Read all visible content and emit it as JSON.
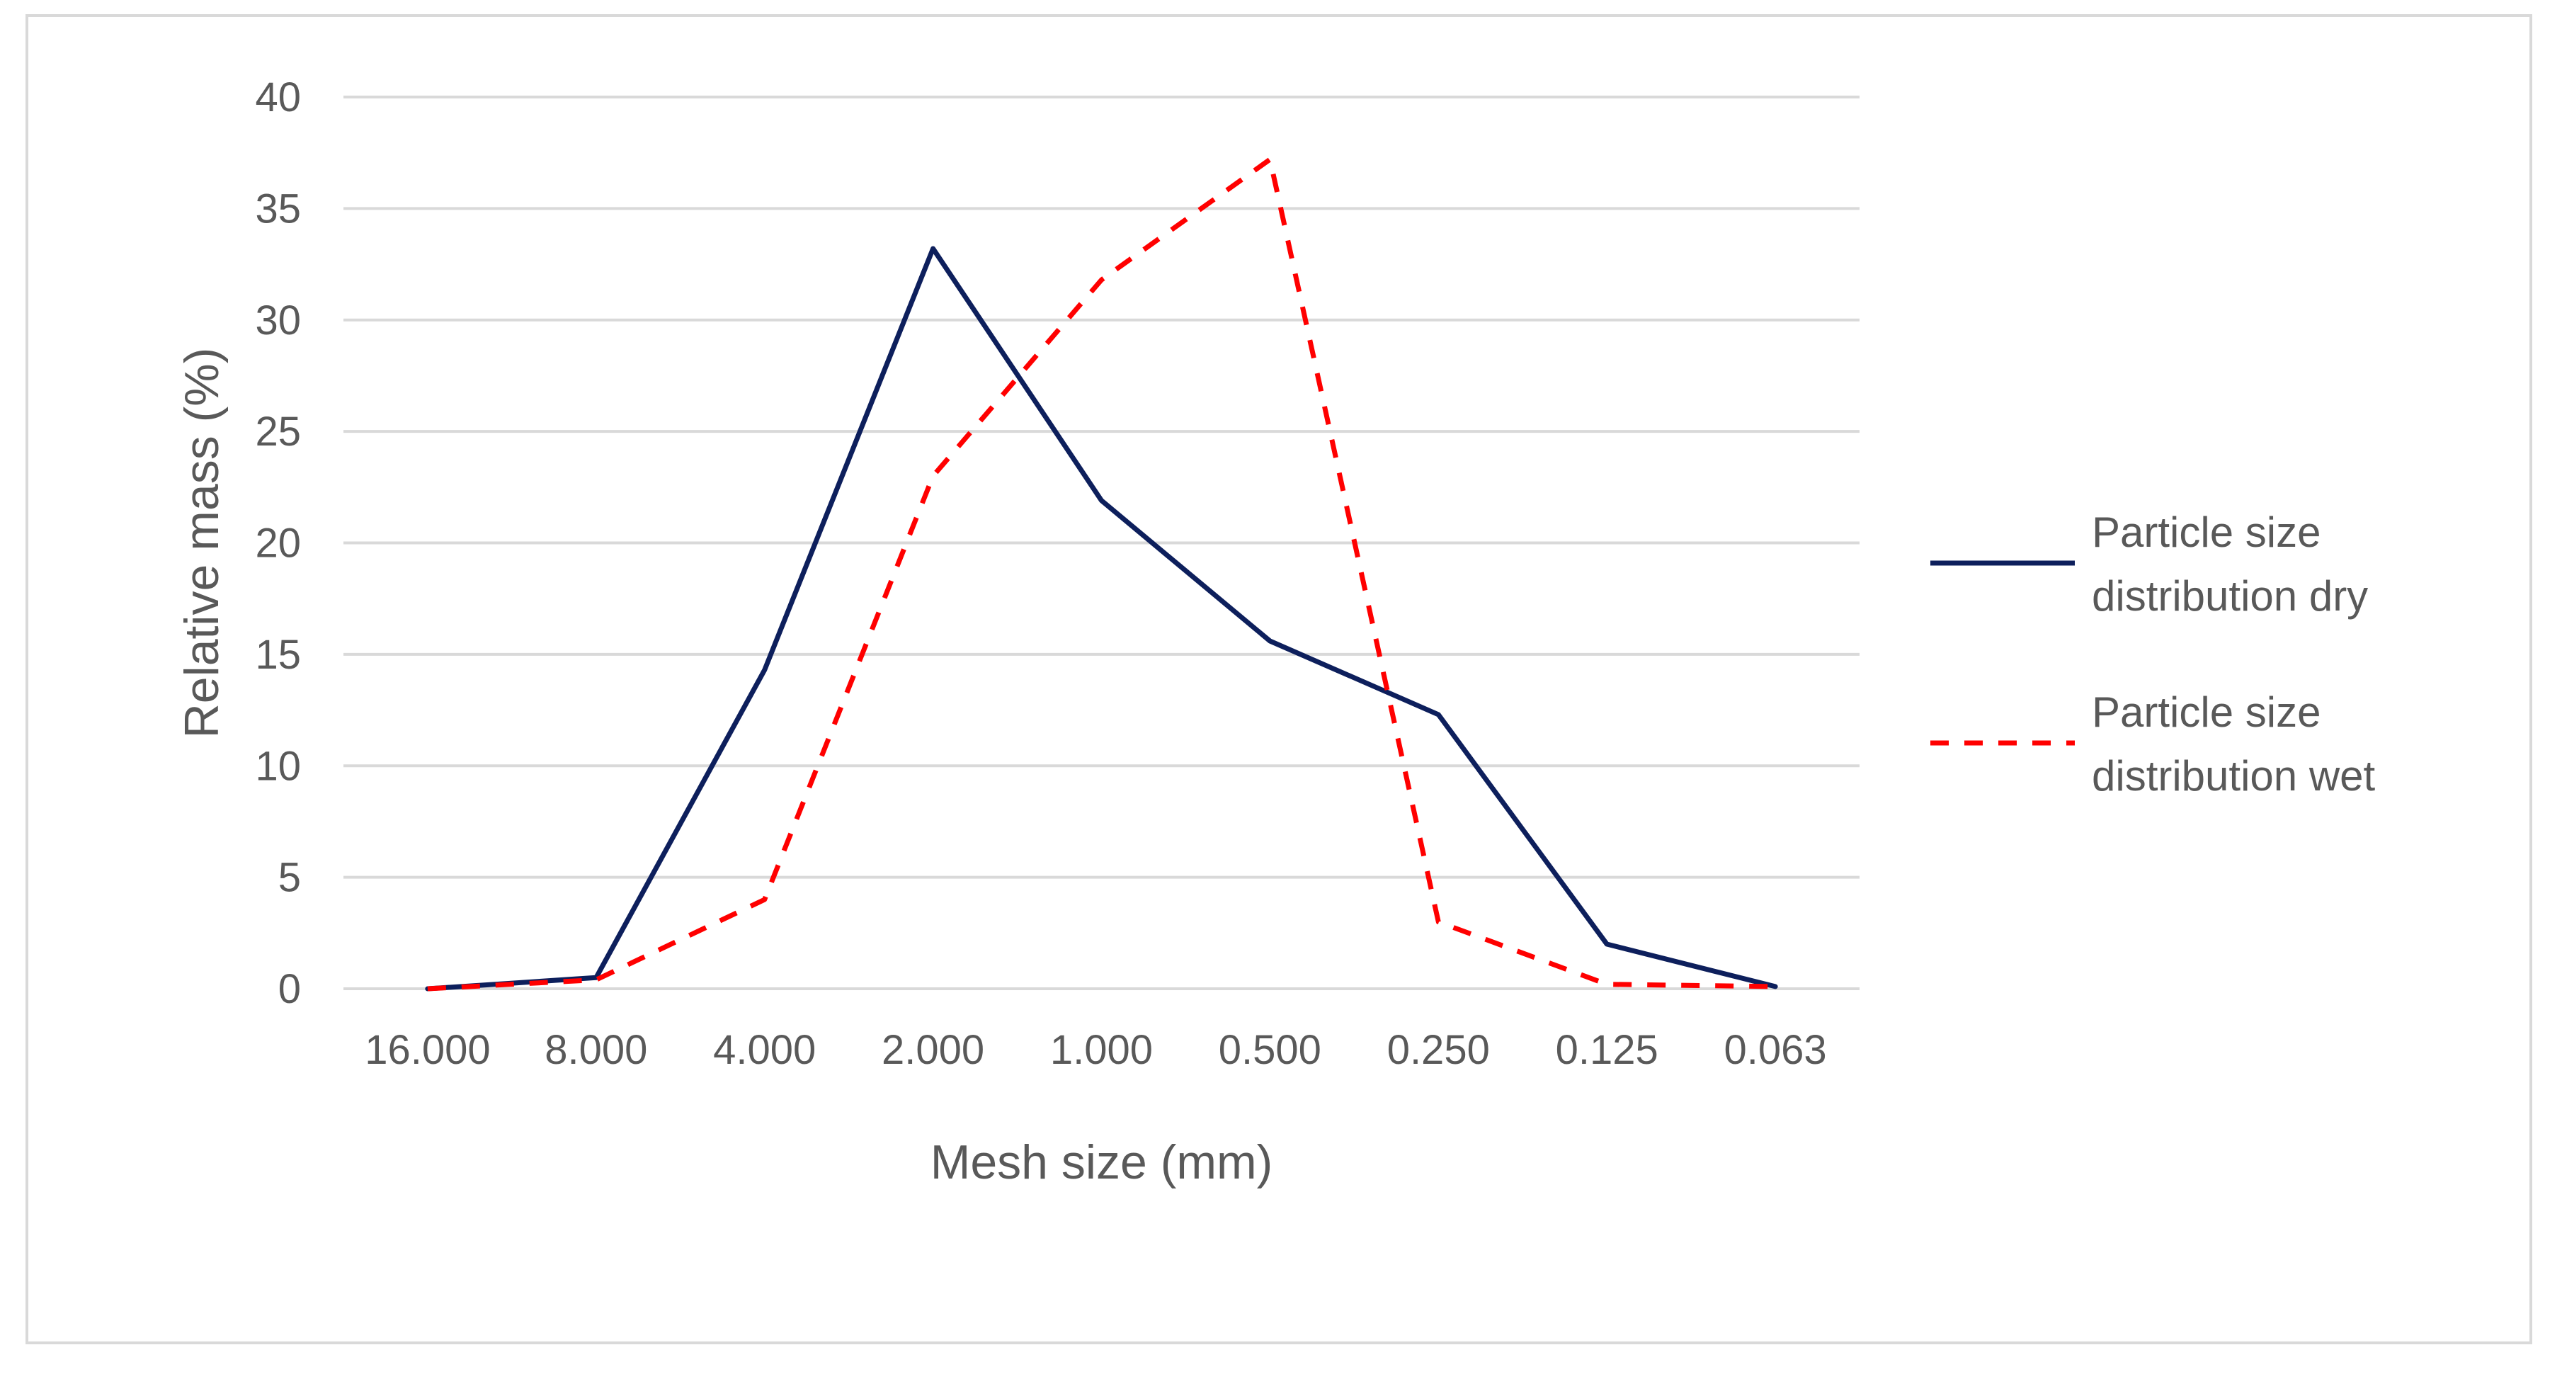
{
  "chart_data": {
    "type": "line",
    "title": "",
    "xlabel": "Mesh size (mm)",
    "ylabel": "Relative mass (%)",
    "categories": [
      "16.000",
      "8.000",
      "4.000",
      "2.000",
      "1.000",
      "0.500",
      "0.250",
      "0.125",
      "0.063"
    ],
    "ylim": [
      0,
      40
    ],
    "yticks": [
      "0",
      "5",
      "10",
      "15",
      "20",
      "25",
      "30",
      "35",
      "40"
    ],
    "grid": true,
    "legend_position": "right",
    "series": [
      {
        "name": "Particle size distribution dry",
        "legend_lines": [
          "Particle size",
          "distribution dry"
        ],
        "color": "#0d1f5c",
        "style": "solid",
        "values": [
          0,
          0.5,
          14.3,
          33.2,
          21.9,
          15.6,
          12.3,
          2.0,
          0.1
        ]
      },
      {
        "name": "Particle size distribution wet",
        "legend_lines": [
          "Particle size",
          "distribution wet"
        ],
        "color": "#ff0000",
        "style": "dashed",
        "values": [
          0,
          0.4,
          4.0,
          23.0,
          31.8,
          37.2,
          3.0,
          0.2,
          0.1
        ]
      }
    ]
  },
  "colors": {
    "gridline": "#d9d9d9",
    "text": "#595959",
    "border": "#d9d9d9"
  }
}
